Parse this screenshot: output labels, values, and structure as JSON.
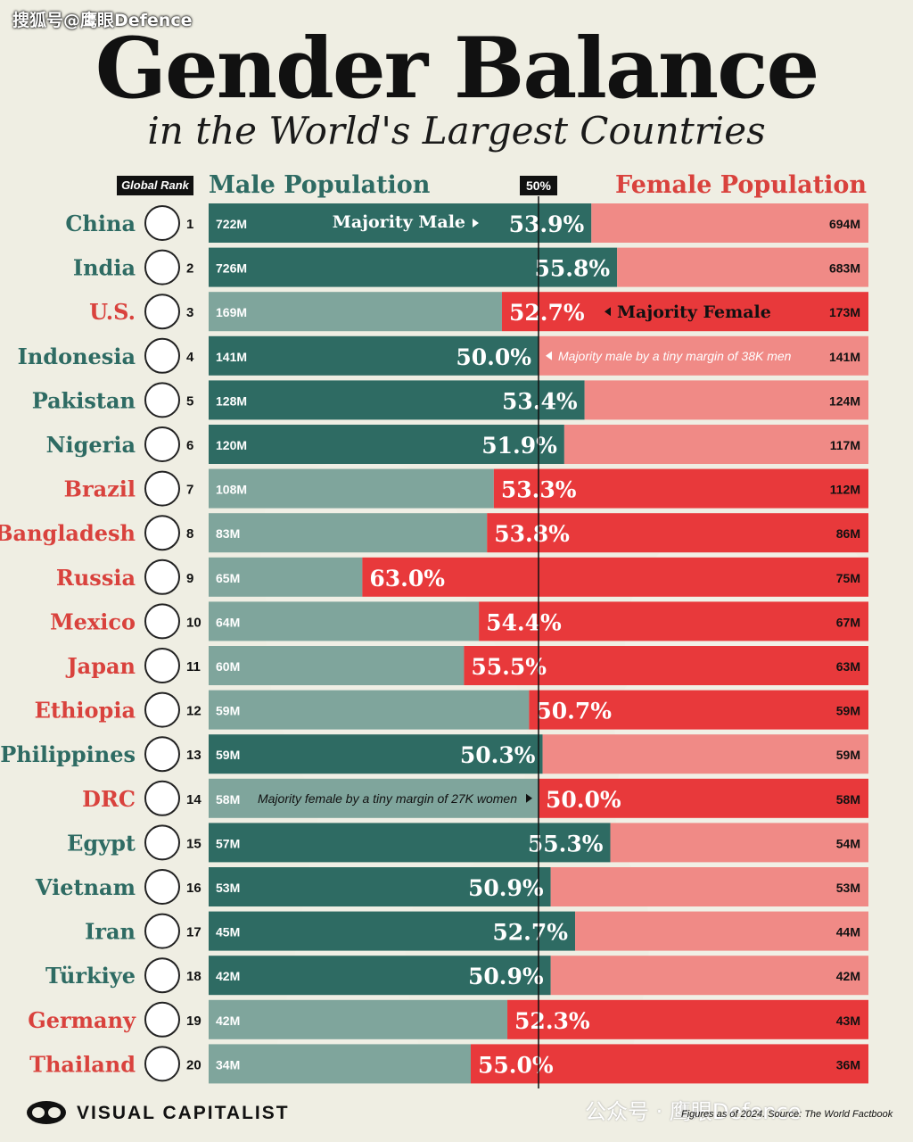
{
  "watermark_top": "搜狐号@鹰眼Defence",
  "title": "Gender Balance",
  "subtitle": "in the World's Largest Countries",
  "rank_header": "Global Rank",
  "male_header": "Male Population",
  "female_header": "Female Population",
  "fifty_label": "50%",
  "colors": {
    "male": "#2e6b63",
    "male_light": "#7fa59c",
    "female": "#e8393b",
    "female_light": "#f08a86",
    "male_text": "#2e6b63",
    "female_text": "#d9423d"
  },
  "annotations": {
    "majority_male": "Majority Male",
    "majority_female": "Majority Female",
    "indonesia_note": "Majority male by a tiny margin of 38K men",
    "drc_note": "Majority female by a tiny margin of 27K women"
  },
  "chart_data": {
    "type": "bar",
    "title": "Gender Balance",
    "subtitle": "in the World's Largest Countries",
    "series": [
      {
        "name": "Male Population"
      },
      {
        "name": "Female Population"
      }
    ],
    "rows": [
      {
        "country": "China",
        "rank": 1,
        "male": "722M",
        "female": "694M",
        "pct": "53.9%",
        "pct_value": 53.9,
        "majority": "male",
        "flag": "china-flag"
      },
      {
        "country": "India",
        "rank": 2,
        "male": "726M",
        "female": "683M",
        "pct": "55.8%",
        "pct_value": 55.8,
        "majority": "male",
        "flag": "india-flag"
      },
      {
        "country": "U.S.",
        "rank": 3,
        "male": "169M",
        "female": "173M",
        "pct": "52.7%",
        "pct_value": 52.7,
        "majority": "female",
        "flag": "us-flag"
      },
      {
        "country": "Indonesia",
        "rank": 4,
        "male": "141M",
        "female": "141M",
        "pct": "50.0%",
        "pct_value": 50.0,
        "majority": "male",
        "flag": "indonesia-flag"
      },
      {
        "country": "Pakistan",
        "rank": 5,
        "male": "128M",
        "female": "124M",
        "pct": "53.4%",
        "pct_value": 53.4,
        "majority": "male",
        "flag": "pakistan-flag"
      },
      {
        "country": "Nigeria",
        "rank": 6,
        "male": "120M",
        "female": "117M",
        "pct": "51.9%",
        "pct_value": 51.9,
        "majority": "male",
        "flag": "nigeria-flag"
      },
      {
        "country": "Brazil",
        "rank": 7,
        "male": "108M",
        "female": "112M",
        "pct": "53.3%",
        "pct_value": 53.3,
        "majority": "female",
        "flag": "brazil-flag"
      },
      {
        "country": "Bangladesh",
        "rank": 8,
        "male": "83M",
        "female": "86M",
        "pct": "53.8%",
        "pct_value": 53.8,
        "majority": "female",
        "flag": "bangladesh-flag"
      },
      {
        "country": "Russia",
        "rank": 9,
        "male": "65M",
        "female": "75M",
        "pct": "63.0%",
        "pct_value": 63.0,
        "majority": "female",
        "flag": "russia-flag"
      },
      {
        "country": "Mexico",
        "rank": 10,
        "male": "64M",
        "female": "67M",
        "pct": "54.4%",
        "pct_value": 54.4,
        "majority": "female",
        "flag": "mexico-flag"
      },
      {
        "country": "Japan",
        "rank": 11,
        "male": "60M",
        "female": "63M",
        "pct": "55.5%",
        "pct_value": 55.5,
        "majority": "female",
        "flag": "japan-flag"
      },
      {
        "country": "Ethiopia",
        "rank": 12,
        "male": "59M",
        "female": "59M",
        "pct": "50.7%",
        "pct_value": 50.7,
        "majority": "female",
        "flag": "ethiopia-flag"
      },
      {
        "country": "Philippines",
        "rank": 13,
        "male": "59M",
        "female": "59M",
        "pct": "50.3%",
        "pct_value": 50.3,
        "majority": "male",
        "flag": "philippines-flag"
      },
      {
        "country": "DRC",
        "rank": 14,
        "male": "58M",
        "female": "58M",
        "pct": "50.0%",
        "pct_value": 50.0,
        "majority": "female",
        "flag": "drc-flag"
      },
      {
        "country": "Egypt",
        "rank": 15,
        "male": "57M",
        "female": "54M",
        "pct": "55.3%",
        "pct_value": 55.3,
        "majority": "male",
        "flag": "egypt-flag"
      },
      {
        "country": "Vietnam",
        "rank": 16,
        "male": "53M",
        "female": "53M",
        "pct": "50.9%",
        "pct_value": 50.9,
        "majority": "male",
        "flag": "vietnam-flag"
      },
      {
        "country": "Iran",
        "rank": 17,
        "male": "45M",
        "female": "44M",
        "pct": "52.7%",
        "pct_value": 52.7,
        "majority": "male",
        "flag": "iran-flag"
      },
      {
        "country": "Türkiye",
        "rank": 18,
        "male": "42M",
        "female": "42M",
        "pct": "50.9%",
        "pct_value": 50.9,
        "majority": "male",
        "flag": "turkiye-flag"
      },
      {
        "country": "Germany",
        "rank": 19,
        "male": "42M",
        "female": "43M",
        "pct": "52.3%",
        "pct_value": 52.3,
        "majority": "female",
        "flag": "germany-flag"
      },
      {
        "country": "Thailand",
        "rank": 20,
        "male": "34M",
        "female": "36M",
        "pct": "55.0%",
        "pct_value": 55.0,
        "majority": "female",
        "flag": "thailand-flag"
      }
    ]
  },
  "footer": {
    "brand": "VISUAL CAPITALIST",
    "watermark": "公众号 · 鹰眼Defence",
    "source": "Figures as of 2024. Source: The World Factbook"
  }
}
